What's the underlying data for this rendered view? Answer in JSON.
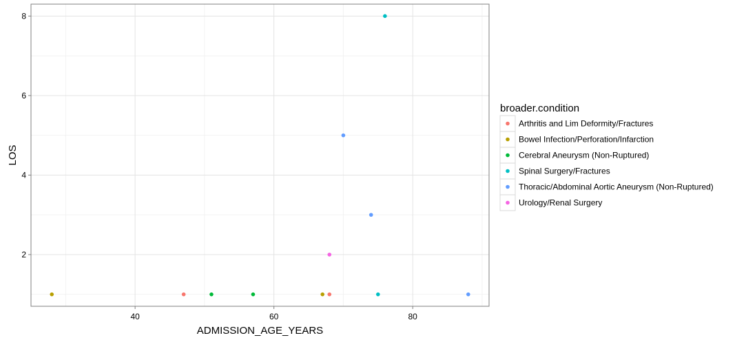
{
  "chart_data": {
    "type": "scatter",
    "xlabel": "ADMISSION_AGE_YEARS",
    "ylabel": "LOS",
    "xlim": [
      25,
      91
    ],
    "ylim": [
      0.7,
      8.3
    ],
    "xticks": [
      40,
      60,
      80
    ],
    "yticks": [
      2,
      4,
      6,
      8
    ],
    "grid": true,
    "legend": {
      "title": "broader.condition",
      "placement": "right"
    },
    "series": [
      {
        "name": "Arthritis and Lim Deformity/Fractures",
        "color": "#F8766D",
        "points": [
          {
            "x": 47,
            "y": 1
          },
          {
            "x": 68,
            "y": 1
          }
        ]
      },
      {
        "name": "Bowel Infection/Perforation/Infarction",
        "color": "#B79F00",
        "points": [
          {
            "x": 28,
            "y": 1
          },
          {
            "x": 67,
            "y": 1
          }
        ]
      },
      {
        "name": "Cerebral Aneurysm (Non-Ruptured)",
        "color": "#00BA38",
        "points": [
          {
            "x": 51,
            "y": 1
          },
          {
            "x": 57,
            "y": 1
          }
        ]
      },
      {
        "name": "Spinal Surgery/Fractures",
        "color": "#00BFC4",
        "points": [
          {
            "x": 76,
            "y": 8
          },
          {
            "x": 75,
            "y": 1
          }
        ]
      },
      {
        "name": "Thoracic/Abdominal Aortic Aneurysm (Non-Ruptured)",
        "color": "#619CFF",
        "points": [
          {
            "x": 70,
            "y": 5
          },
          {
            "x": 74,
            "y": 3
          },
          {
            "x": 88,
            "y": 1
          }
        ]
      },
      {
        "name": "Urology/Renal Surgery",
        "color": "#F564E3",
        "points": [
          {
            "x": 68,
            "y": 2
          }
        ]
      }
    ]
  }
}
